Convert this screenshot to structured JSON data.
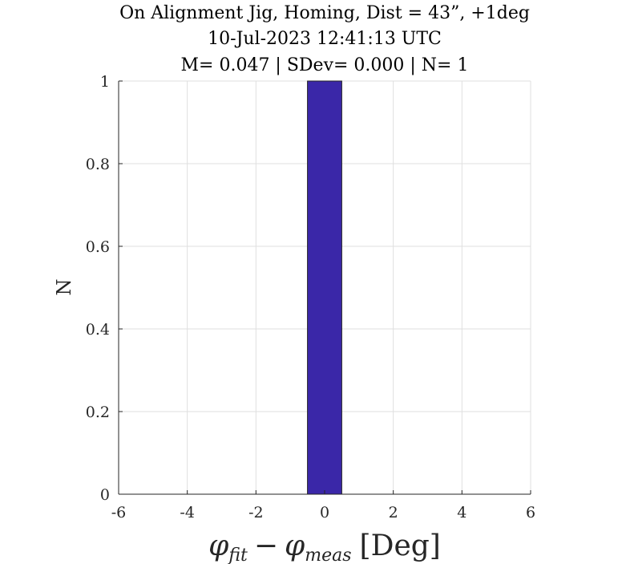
{
  "chart_data": {
    "type": "bar",
    "title_lines": [
      "On Alignment Jig, Homing, Dist = 43”, +1deg",
      "10-Jul-2023 12:41:13 UTC",
      "M= 0.047 | SDev= 0.000 | N= 1"
    ],
    "xlabel": {
      "phi": "φ",
      "sub_fit": "fit",
      "minus": "−",
      "sub_meas": "meas",
      "unit": "[Deg]"
    },
    "ylabel": "N",
    "xlim": [
      -6,
      6
    ],
    "ylim": [
      0,
      1
    ],
    "xticks": [
      "-6",
      "-4",
      "-2",
      "0",
      "2",
      "4",
      "6"
    ],
    "yticks": [
      "0",
      "0.2",
      "0.4",
      "0.6",
      "0.8",
      "1"
    ],
    "bin_edges": [
      -5.5,
      -4.5,
      -3.5,
      -2.5,
      -1.5,
      -0.5,
      0.5,
      1.5,
      2.5,
      3.5,
      4.5
    ],
    "values": [
      0,
      0,
      0,
      0,
      0,
      1,
      0,
      0,
      0,
      0
    ],
    "grid": true,
    "bar_color": "#3a27a8",
    "bar_edge_color": "#262626"
  }
}
